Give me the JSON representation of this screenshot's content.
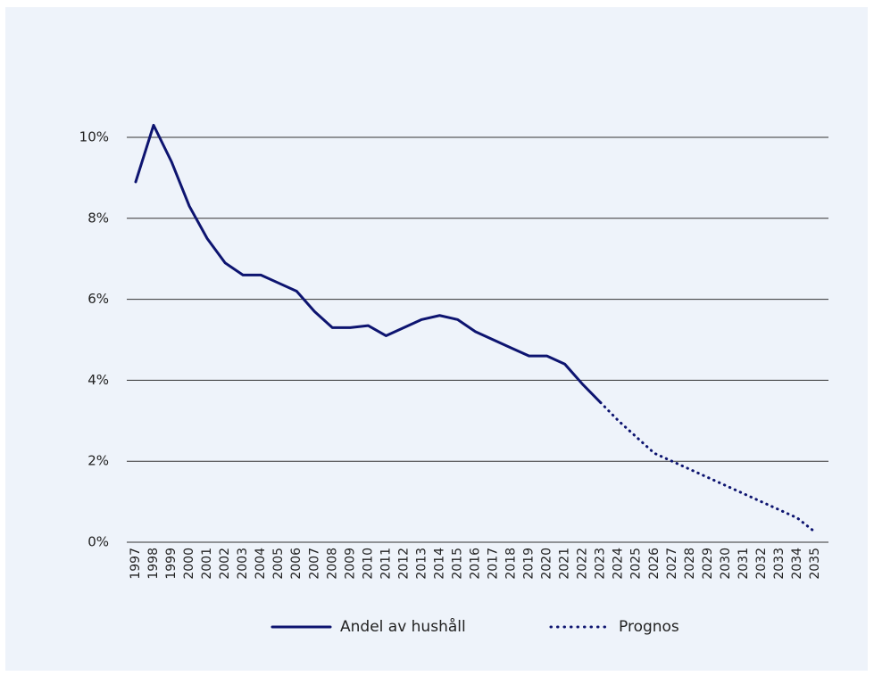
{
  "chart_data": {
    "type": "line",
    "categories": [
      "1997",
      "1998",
      "1999",
      "2000",
      "2001",
      "2002",
      "2003",
      "2004",
      "2005",
      "2006",
      "2007",
      "2008",
      "2009",
      "2010",
      "2011",
      "2012",
      "2013",
      "2014",
      "2015",
      "2016",
      "2017",
      "2018",
      "2019",
      "2020",
      "2021",
      "2022",
      "2023",
      "2024",
      "2025",
      "2026",
      "2027",
      "2028",
      "2029",
      "2030",
      "2031",
      "2032",
      "2033",
      "2034",
      "2035"
    ],
    "series": [
      {
        "name": "Andel av hushåll",
        "color": "#0d1470",
        "style": "solid",
        "values": [
          8.9,
          10.3,
          9.4,
          8.3,
          7.5,
          6.9,
          6.6,
          6.6,
          6.4,
          6.2,
          5.7,
          5.3,
          5.3,
          5.35,
          5.1,
          5.3,
          5.5,
          5.6,
          5.5,
          5.2,
          5.0,
          4.8,
          4.6,
          4.6,
          4.4,
          3.9,
          3.45,
          null,
          null,
          null,
          null,
          null,
          null,
          null,
          null,
          null,
          null,
          null,
          null
        ]
      },
      {
        "name": "Prognos",
        "color": "#0d1470",
        "style": "dotted",
        "values": [
          null,
          null,
          null,
          null,
          null,
          null,
          null,
          null,
          null,
          null,
          null,
          null,
          null,
          null,
          null,
          null,
          null,
          null,
          null,
          null,
          null,
          null,
          null,
          null,
          null,
          null,
          3.45,
          3.0,
          2.6,
          2.2,
          2.0,
          1.8,
          1.6,
          1.4,
          1.2,
          1.0,
          0.8,
          0.6,
          0.25
        ]
      }
    ],
    "ylim": [
      0,
      10.6
    ],
    "yticks": [
      {
        "value": 0,
        "label": "0%"
      },
      {
        "value": 2,
        "label": "2%"
      },
      {
        "value": 4,
        "label": "4%"
      },
      {
        "value": 6,
        "label": "6%"
      },
      {
        "value": 8,
        "label": "8%"
      },
      {
        "value": 10,
        "label": "10%"
      }
    ],
    "grid": true,
    "legend": "bottom"
  }
}
